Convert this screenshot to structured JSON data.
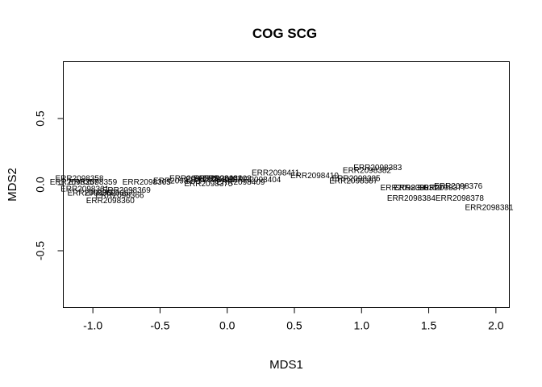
{
  "chart_data": {
    "type": "scatter",
    "title": "COG SCG",
    "xlabel": "MDS1",
    "ylabel": "MDS2",
    "xlim": [
      -1.22,
      2.1
    ],
    "ylim": [
      -0.93,
      0.93
    ],
    "x_ticks": [
      -1.0,
      -0.5,
      0.0,
      0.5,
      1.0,
      1.5,
      2.0
    ],
    "x_tick_labels": [
      "-1.0",
      "-0.5",
      "0.0",
      "0.5",
      "1.0",
      "1.5",
      "2.0"
    ],
    "y_ticks": [
      -0.5,
      0.0,
      0.5
    ],
    "y_tick_labels": [
      "-0.5",
      "0.0",
      "0.5"
    ],
    "points": [
      {
        "label": "ERR2098383",
        "x": 1.12,
        "y": 0.13
      },
      {
        "label": "ERR2098382",
        "x": 1.04,
        "y": 0.11
      },
      {
        "label": "ERR2098385",
        "x": 0.96,
        "y": 0.05
      },
      {
        "label": "ERR2098387",
        "x": 0.94,
        "y": 0.03
      },
      {
        "label": "ERR2098410",
        "x": 0.65,
        "y": 0.07
      },
      {
        "label": "ERR2098411",
        "x": 0.36,
        "y": 0.09
      },
      {
        "label": "ERR2098404",
        "x": 0.22,
        "y": 0.04
      },
      {
        "label": "ERR2098409",
        "x": 0.1,
        "y": 0.02
      },
      {
        "label": "ERR2098403",
        "x": 0.0,
        "y": 0.05
      },
      {
        "label": "ERR2098402",
        "x": -0.07,
        "y": 0.05
      },
      {
        "label": "ERR2098401",
        "x": -0.13,
        "y": 0.04
      },
      {
        "label": "ERR2098375",
        "x": -0.14,
        "y": 0.01
      },
      {
        "label": "ERR2098373",
        "x": -0.25,
        "y": 0.05
      },
      {
        "label": "ERR2098371",
        "x": -0.37,
        "y": 0.03
      },
      {
        "label": "ERR2098365",
        "x": -0.6,
        "y": 0.02
      },
      {
        "label": "ERR2098369",
        "x": -0.75,
        "y": -0.04
      },
      {
        "label": "ERR2098366",
        "x": -0.8,
        "y": -0.08
      },
      {
        "label": "ERR2098367",
        "x": -0.88,
        "y": -0.06
      },
      {
        "label": "ERR2098360",
        "x": -0.87,
        "y": -0.12
      },
      {
        "label": "ERR2098362",
        "x": -1.01,
        "y": -0.06
      },
      {
        "label": "ERR2098361",
        "x": -1.06,
        "y": -0.03
      },
      {
        "label": "ERR2098359",
        "x": -1.0,
        "y": 0.02
      },
      {
        "label": "ERR2098358",
        "x": -1.1,
        "y": 0.05
      },
      {
        "label": "ERR2098357",
        "x": -1.14,
        "y": 0.02
      },
      {
        "label": "ERR2098384",
        "x": 1.37,
        "y": -0.1
      },
      {
        "label": "ERR2098378",
        "x": 1.73,
        "y": -0.1
      },
      {
        "label": "ERR2098381",
        "x": 1.95,
        "y": -0.17
      },
      {
        "label": "ERR2098380",
        "x": 1.32,
        "y": -0.02
      },
      {
        "label": "ERR2098379",
        "x": 1.42,
        "y": -0.02
      },
      {
        "label": "ERR2098376",
        "x": 1.72,
        "y": -0.01
      },
      {
        "label": "ERR2098377",
        "x": 1.6,
        "y": -0.02
      }
    ]
  }
}
